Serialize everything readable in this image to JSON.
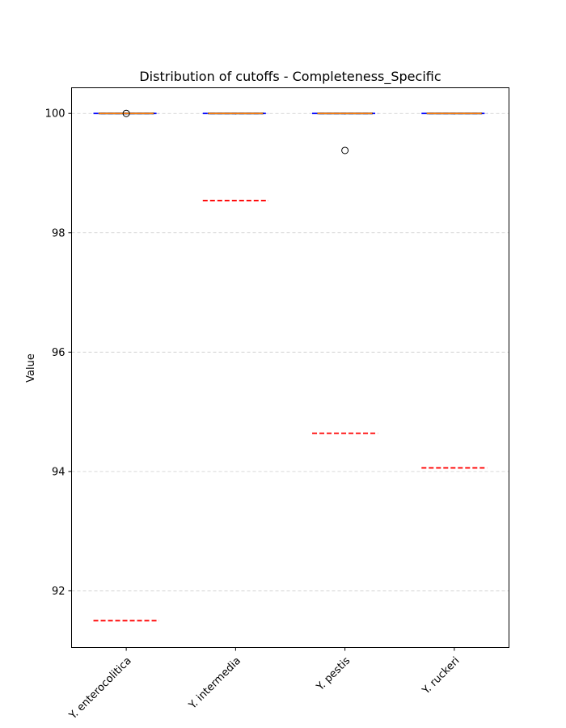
{
  "chart_data": {
    "type": "box",
    "title": "Distribution of cutoffs - Completeness_Specific",
    "xlabel": "",
    "ylabel": "Value",
    "ylim": [
      91.05,
      100.43
    ],
    "yticks": [
      92,
      94,
      96,
      98,
      100
    ],
    "grid": "y-dashed",
    "categories": [
      "Y. enterocolitica",
      "Y. intermedia",
      "Y. pestis",
      "Y. ruckeri"
    ],
    "boxes": [
      {
        "category": "Y. enterocolitica",
        "q1": 100.0,
        "median": 100.0,
        "q3": 100.0,
        "whisker_low": 100.0,
        "whisker_high": 100.0,
        "outliers": [
          100.0
        ]
      },
      {
        "category": "Y. intermedia",
        "q1": 100.0,
        "median": 100.0,
        "q3": 100.0,
        "whisker_low": 100.0,
        "whisker_high": 100.0,
        "outliers": []
      },
      {
        "category": "Y. pestis",
        "q1": 100.0,
        "median": 100.0,
        "q3": 100.0,
        "whisker_low": 100.0,
        "whisker_high": 100.0,
        "outliers": [
          99.38
        ]
      },
      {
        "category": "Y. ruckeri",
        "q1": 100.0,
        "median": 100.0,
        "q3": 100.0,
        "whisker_low": 100.0,
        "whisker_high": 100.0,
        "outliers": []
      }
    ],
    "reference_lines": [
      {
        "category": "Y. enterocolitica",
        "blue_dashed": 100.0,
        "red_dashed": 91.5
      },
      {
        "category": "Y. intermedia",
        "blue_dashed": 100.0,
        "red_dashed": 98.54
      },
      {
        "category": "Y. pestis",
        "blue_dashed": 100.0,
        "red_dashed": 94.64
      },
      {
        "category": "Y. ruckeri",
        "blue_dashed": 100.0,
        "red_dashed": 94.06
      }
    ],
    "colors": {
      "box_edge": "#000000",
      "median": "#ff7f0e",
      "blue_line": "#0000ff",
      "red_line": "#ff0000",
      "grid": "#cccccc"
    }
  }
}
